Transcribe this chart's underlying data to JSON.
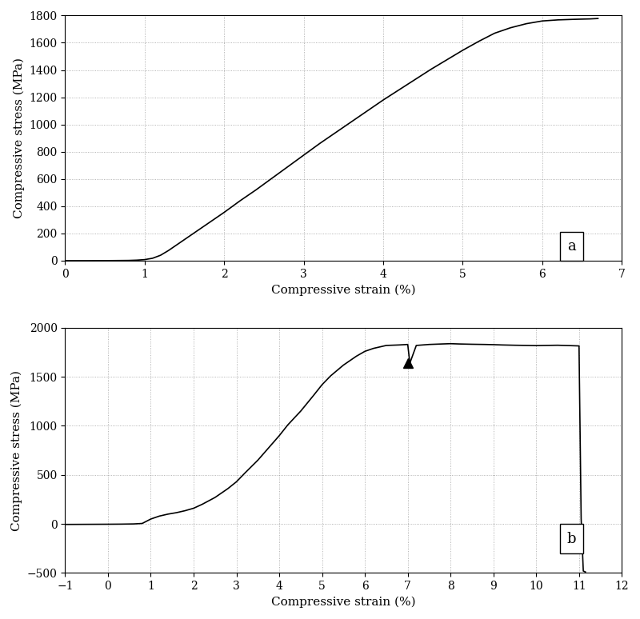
{
  "plot_a": {
    "label": "a",
    "xlabel": "Compressive strain (%)",
    "ylabel": "Compressive stress (MPa)",
    "xlim": [
      0,
      7
    ],
    "ylim": [
      0,
      1800
    ],
    "xticks": [
      0,
      1,
      2,
      3,
      4,
      5,
      6,
      7
    ],
    "yticks": [
      0,
      200,
      400,
      600,
      800,
      1000,
      1200,
      1400,
      1600,
      1800
    ],
    "curve": {
      "x": [
        0,
        0.3,
        0.6,
        0.8,
        0.9,
        1.0,
        1.1,
        1.2,
        1.3,
        1.4,
        1.5,
        1.6,
        1.7,
        1.8,
        1.9,
        2.0,
        2.2,
        2.4,
        2.6,
        2.8,
        3.0,
        3.2,
        3.4,
        3.6,
        3.8,
        4.0,
        4.2,
        4.4,
        4.6,
        4.8,
        5.0,
        5.2,
        5.4,
        5.6,
        5.8,
        6.0,
        6.2,
        6.4,
        6.6,
        6.7
      ],
      "y": [
        0,
        0,
        1,
        2,
        4,
        8,
        18,
        40,
        75,
        115,
        155,
        195,
        235,
        275,
        315,
        355,
        440,
        520,
        605,
        690,
        775,
        860,
        940,
        1020,
        1100,
        1180,
        1255,
        1330,
        1405,
        1475,
        1545,
        1610,
        1670,
        1710,
        1740,
        1760,
        1768,
        1772,
        1775,
        1778
      ]
    }
  },
  "plot_b": {
    "label": "b",
    "xlabel": "Compressive strain (%)",
    "ylabel": "Compressive stress (MPa)",
    "xlim": [
      -1,
      12
    ],
    "ylim": [
      -500,
      2000
    ],
    "xticks": [
      -1,
      0,
      1,
      2,
      3,
      4,
      5,
      6,
      7,
      8,
      9,
      10,
      11,
      12
    ],
    "yticks": [
      -500,
      0,
      500,
      1000,
      1500,
      2000
    ],
    "curve": {
      "x": [
        -1.0,
        -0.5,
        0.0,
        0.3,
        0.6,
        0.8,
        1.0,
        1.1,
        1.2,
        1.4,
        1.6,
        1.8,
        2.0,
        2.2,
        2.5,
        2.8,
        3.0,
        3.2,
        3.5,
        3.8,
        4.0,
        4.2,
        4.5,
        4.8,
        5.0,
        5.2,
        5.5,
        5.8,
        6.0,
        6.2,
        6.5,
        6.8,
        7.0,
        7.05,
        7.2,
        7.5,
        7.8,
        8.0,
        8.2,
        8.5,
        8.8,
        9.0,
        9.2,
        9.5,
        9.8,
        10.0,
        10.2,
        10.5,
        10.8,
        11.0,
        11.05,
        11.1,
        11.15
      ],
      "y": [
        -5,
        -4,
        -3,
        -2,
        0,
        5,
        50,
        65,
        80,
        100,
        115,
        135,
        160,
        200,
        270,
        360,
        430,
        520,
        650,
        800,
        900,
        1010,
        1150,
        1310,
        1420,
        1510,
        1620,
        1710,
        1760,
        1790,
        1820,
        1825,
        1830,
        1640,
        1820,
        1830,
        1835,
        1838,
        1835,
        1832,
        1830,
        1828,
        1825,
        1822,
        1820,
        1818,
        1820,
        1822,
        1818,
        1815,
        50,
        -480,
        -490
      ]
    },
    "triangle_x": 7.0,
    "triangle_y": 1640
  },
  "line_color": "#000000",
  "background_color": "#ffffff",
  "grid_color": "#888888",
  "grid_style": ":",
  "grid_alpha": 0.8
}
